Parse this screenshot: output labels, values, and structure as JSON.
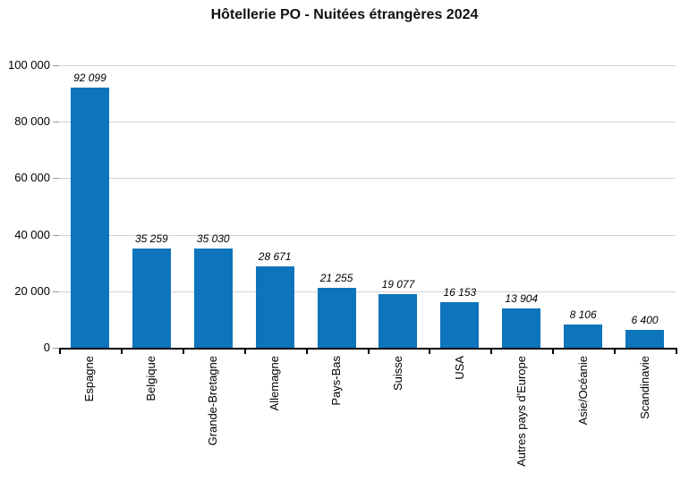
{
  "chart_data": {
    "type": "bar",
    "title": "Hôtellerie PO - Nuitées étrangères 2024",
    "categories": [
      "Espagne",
      "Belgique",
      "Grande-Bretagne",
      "Allemagne",
      "Pays-Bas",
      "Suisse",
      "USA",
      "Autres pays d'Europe",
      "Asie/Océanie",
      "Scandinavie"
    ],
    "values": [
      92099,
      35259,
      35030,
      28671,
      21255,
      19077,
      16153,
      13904,
      8106,
      6400
    ],
    "value_labels": [
      "92 099",
      "35 259",
      "35 030",
      "28 671",
      "21 255",
      "19 077",
      "16 153",
      "13 904",
      "8 106",
      "6 400"
    ],
    "xlabel": "",
    "ylabel": "",
    "ylim": [
      0,
      100000
    ],
    "ytick_step": 20000,
    "ytick_labels": [
      "0",
      "20 000",
      "40 000",
      "60 000",
      "80 000",
      "100 000"
    ],
    "grid": true,
    "legend": "none",
    "bar_color": "#0e74bc",
    "gridline_color": "#d3d3d3",
    "tick_color": "#999999",
    "axis_color": "#000000",
    "text_color": "#000000"
  }
}
